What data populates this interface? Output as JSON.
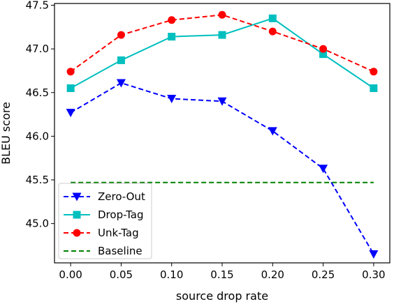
{
  "chart_data": {
    "type": "line",
    "xlabel": "source drop rate",
    "ylabel": "BLEU score",
    "x": [
      0.0,
      0.05,
      0.1,
      0.15,
      0.2,
      0.25,
      0.3
    ],
    "xticks": [
      "0.00",
      "0.05",
      "0.10",
      "0.15",
      "0.20",
      "0.25",
      "0.30"
    ],
    "yticks": [
      "45.0",
      "45.5",
      "46.0",
      "46.5",
      "47.0",
      "47.5"
    ],
    "xlim": [
      -0.016,
      0.316
    ],
    "ylim": [
      44.55,
      47.52
    ],
    "legend_position": "lower-left",
    "grid": false,
    "series": [
      {
        "name": "Zero-Out",
        "color": "#0000ff",
        "linestyle": "dashed",
        "marker": "triangle-down",
        "values": [
          46.27,
          46.61,
          46.43,
          46.4,
          46.06,
          45.63,
          44.65
        ]
      },
      {
        "name": "Drop-Tag",
        "color": "#00bfbf",
        "linestyle": "solid",
        "marker": "square",
        "values": [
          46.55,
          46.87,
          47.14,
          47.16,
          47.35,
          46.94,
          46.55
        ]
      },
      {
        "name": "Unk-Tag",
        "color": "#ff0000",
        "linestyle": "dashed",
        "marker": "circle",
        "values": [
          46.74,
          47.16,
          47.33,
          47.39,
          47.2,
          47.0,
          46.74
        ]
      },
      {
        "name": "Baseline",
        "color": "#008000",
        "linestyle": "dashed",
        "marker": "none",
        "values": [
          45.47,
          45.47,
          45.47,
          45.47,
          45.47,
          45.47,
          45.47
        ]
      }
    ]
  }
}
